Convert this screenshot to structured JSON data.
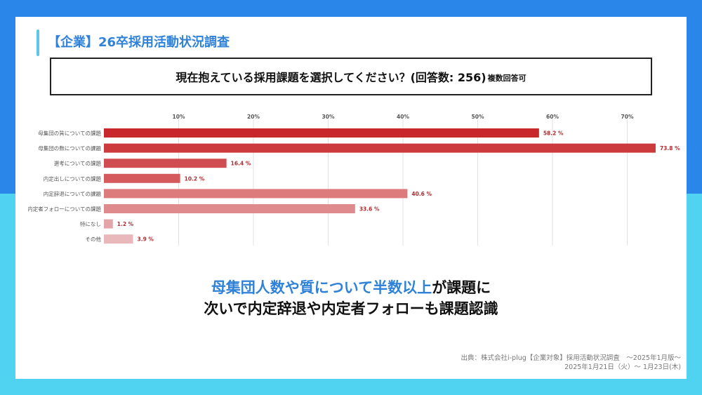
{
  "header": {
    "title": "【企業】26卒採用活動状況調査"
  },
  "question": {
    "text": "現在抱えている採用課題を選択してください？(回答数: 256)",
    "note": "複数回答可"
  },
  "chart_data": {
    "type": "bar",
    "orientation": "horizontal",
    "categories": [
      "母集団の質についての課題",
      "母集団の数についての課題",
      "選考についての課題",
      "内定出しについての課題",
      "内定辞退についての課題",
      "内定者フォローについての課題",
      "特になし",
      "その他"
    ],
    "values": [
      58.2,
      73.8,
      16.4,
      10.2,
      40.6,
      33.6,
      1.2,
      3.9
    ],
    "value_labels": [
      "58.2 %",
      "73.8 %",
      "16.4 %",
      "10.2 %",
      "40.6 %",
      "33.6 %",
      "1.2 %",
      "3.9 %"
    ],
    "x_ticks": [
      10,
      20,
      30,
      40,
      50,
      60,
      70
    ],
    "x_tick_labels": [
      "10%",
      "20%",
      "30%",
      "40%",
      "50%",
      "60%",
      "70%"
    ],
    "xlim": [
      0,
      75
    ],
    "grid": true,
    "unit": "%",
    "colors": [
      "#c8272b",
      "#cc3a3e",
      "#d14c50",
      "#d45a5e",
      "#dc7a7c",
      "#df8a8c",
      "#e3a5a7",
      "#e8b8ba"
    ],
    "label_color": "#b02a2e"
  },
  "summary": {
    "line1_highlight": "母集団人数や質について半数以上",
    "line1_rest": "が課題に",
    "line2": "次いで内定辞退や内定者フォローも課題認識"
  },
  "source": {
    "line1": "出典：株式会社i-plug【企業対象】採用活動状況調査　～2025年1月版～",
    "line2": "2025年1月21日（火）～ 1月23日(木)"
  }
}
